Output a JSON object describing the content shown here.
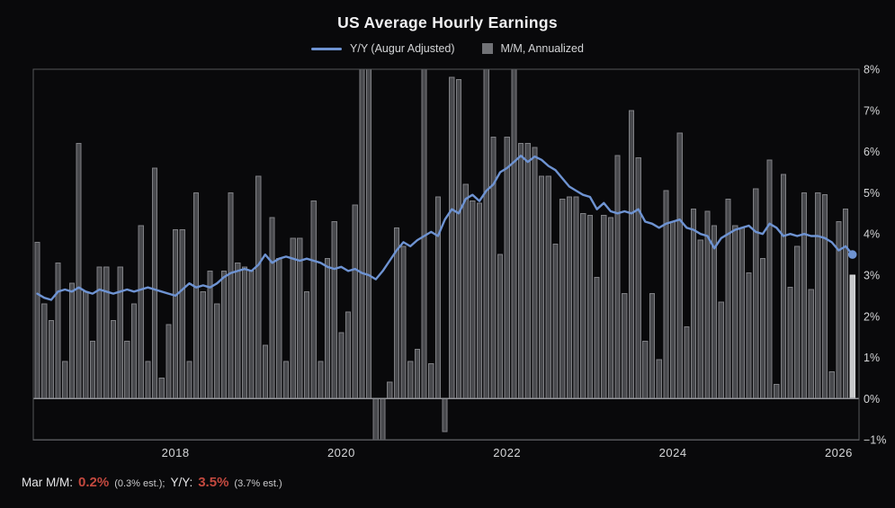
{
  "title": "US Average Hourly Earnings",
  "legend": {
    "yy_label": "Y/Y (Augur Adjusted)",
    "mm_label": "M/M, Annualized"
  },
  "footnote": {
    "label_mm": "Mar M/M:",
    "value_mm": "0.2%",
    "est_mm": "(0.3% est.);",
    "label_yy": "Y/Y:",
    "value_yy": "3.5%",
    "est_yy": "(3.7% est.)"
  },
  "colors": {
    "line_blue": "#6e93d2",
    "bar_fill": "#48494d",
    "bar_edge": "#7f8084",
    "bar_highlight_fill": "#c6c7c9",
    "bar_highlight_edge": "#dadbdd",
    "legend_box_gray": "#717276",
    "accent_red": "#c4493f",
    "frame_gray": "#55565a",
    "zero_line_gray": "#909196",
    "axis_text": "#d5d6d8",
    "background": "#09090b"
  },
  "chart_data": {
    "type": "line+bar",
    "x": {
      "start": "2016-05",
      "step": "1 month",
      "count": 119,
      "end": "2026-03"
    },
    "ylim": [
      -1,
      8
    ],
    "grid": false,
    "legend_position": "top-center",
    "y_axis_side": "right",
    "ytick_labels": [
      "8%",
      "7%",
      "6%",
      "5%",
      "4%",
      "3%",
      "2%",
      "1%",
      "0%",
      "−1%"
    ],
    "xtick_labels": [
      "2018",
      "2020",
      "2022",
      "2024",
      "2026"
    ],
    "highlight_last_bar": true,
    "last_point_marker": true,
    "series": [
      {
        "name": "Y/Y (Augur Adjusted)",
        "type": "line",
        "color": "#6e93d2",
        "values": [
          2.55,
          2.45,
          2.4,
          2.6,
          2.65,
          2.6,
          2.7,
          2.6,
          2.55,
          2.65,
          2.6,
          2.55,
          2.6,
          2.65,
          2.6,
          2.65,
          2.7,
          2.65,
          2.6,
          2.55,
          2.5,
          2.65,
          2.8,
          2.7,
          2.75,
          2.7,
          2.8,
          2.95,
          3.05,
          3.1,
          3.15,
          3.1,
          3.25,
          3.5,
          3.3,
          3.4,
          3.45,
          3.4,
          3.35,
          3.4,
          3.35,
          3.3,
          3.2,
          3.15,
          3.2,
          3.1,
          3.15,
          3.05,
          3.0,
          2.9,
          3.1,
          3.35,
          3.6,
          3.8,
          3.7,
          3.85,
          3.95,
          4.05,
          3.95,
          4.35,
          4.6,
          4.5,
          4.85,
          4.95,
          4.8,
          5.05,
          5.2,
          5.5,
          5.6,
          5.75,
          5.9,
          5.75,
          5.88,
          5.8,
          5.65,
          5.55,
          5.35,
          5.15,
          5.05,
          4.95,
          4.9,
          4.6,
          4.75,
          4.55,
          4.5,
          4.55,
          4.5,
          4.6,
          4.3,
          4.25,
          4.15,
          4.25,
          4.3,
          4.35,
          4.15,
          4.1,
          4.0,
          3.95,
          3.65,
          3.9,
          4.0,
          4.1,
          4.15,
          4.2,
          4.05,
          4.0,
          4.25,
          4.15,
          3.95,
          4.0,
          3.95,
          4.0,
          3.95,
          3.95,
          3.9,
          3.8,
          3.6,
          3.7,
          3.5
        ]
      },
      {
        "name": "M/M, Annualized",
        "type": "bar",
        "color": "#48494d",
        "note": "bars capped at 8% by axis",
        "values": [
          3.8,
          2.3,
          1.9,
          3.3,
          0.9,
          2.8,
          6.2,
          2.6,
          1.4,
          3.2,
          3.2,
          1.9,
          3.2,
          1.4,
          2.3,
          4.2,
          0.9,
          5.6,
          0.5,
          1.8,
          4.1,
          4.1,
          0.9,
          5.0,
          2.6,
          3.1,
          2.3,
          3.1,
          5.0,
          3.3,
          3.2,
          3.1,
          5.4,
          1.3,
          4.4,
          3.4,
          0.9,
          3.9,
          3.9,
          2.6,
          4.8,
          0.9,
          3.4,
          4.3,
          1.6,
          2.1,
          4.7,
          8.0,
          8.0,
          -1.0,
          -1.0,
          0.4,
          4.15,
          3.7,
          0.9,
          1.2,
          8.0,
          0.85,
          4.9,
          -0.8,
          7.8,
          7.75,
          5.2,
          4.8,
          4.75,
          8.0,
          6.35,
          3.5,
          6.35,
          8.0,
          6.2,
          6.2,
          6.1,
          5.4,
          5.4,
          3.75,
          4.85,
          4.9,
          4.9,
          4.5,
          4.45,
          2.95,
          4.45,
          4.4,
          5.9,
          2.55,
          7.0,
          5.85,
          1.4,
          2.55,
          0.95,
          5.05,
          4.3,
          6.45,
          1.75,
          4.6,
          3.85,
          4.55,
          4.2,
          2.35,
          4.85,
          4.2,
          4.15,
          3.05,
          5.1,
          3.4,
          5.8,
          0.35,
          5.45,
          2.7,
          3.7,
          5.0,
          2.65,
          5.0,
          4.95,
          0.65,
          4.3,
          4.6,
          3.0
        ]
      }
    ]
  }
}
